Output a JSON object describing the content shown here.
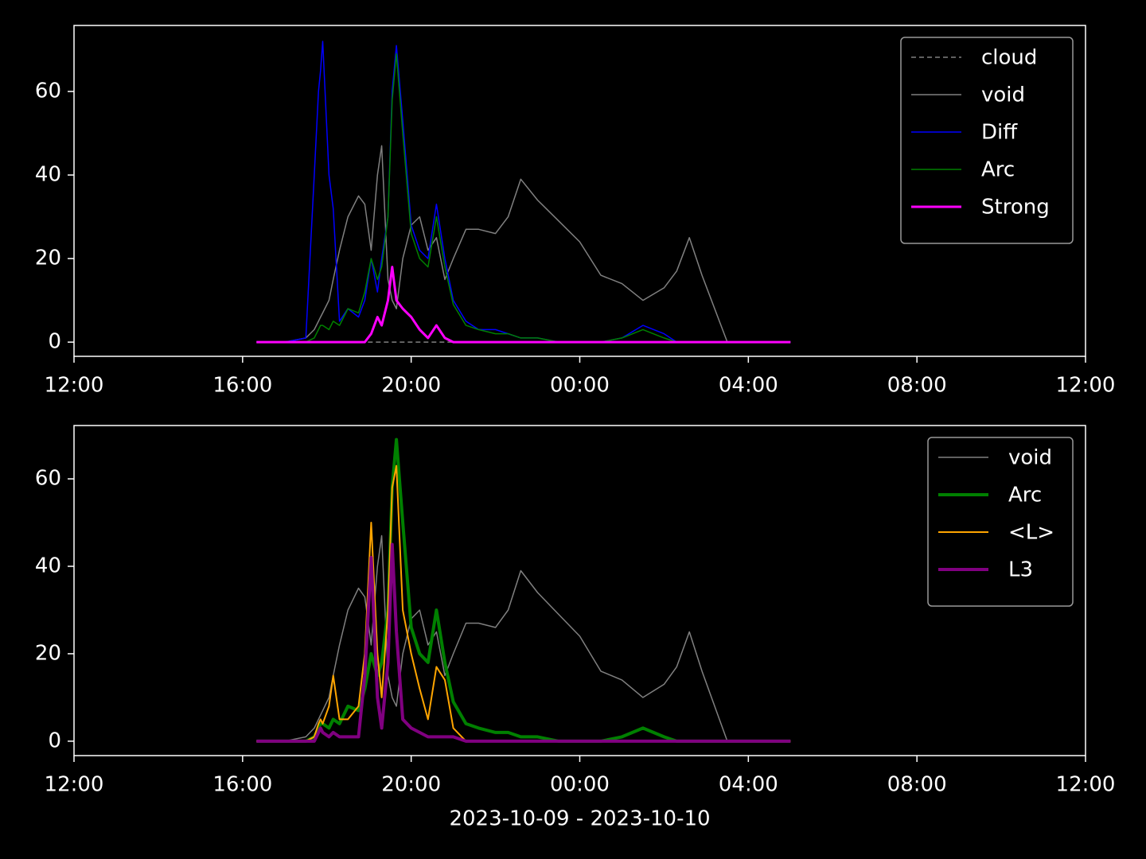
{
  "chart_data": [
    {
      "type": "line",
      "x": [
        16.33,
        17.0,
        17.5,
        17.7,
        17.8,
        17.85,
        17.9,
        18.05,
        18.15,
        18.3,
        18.5,
        18.75,
        18.9,
        19.05,
        19.2,
        19.3,
        19.45,
        19.55,
        19.65,
        19.8,
        20.0,
        20.2,
        20.4,
        20.6,
        20.8,
        21.0,
        21.3,
        21.6,
        22.0,
        22.3,
        22.6,
        23.0,
        23.5,
        24.0,
        24.5,
        25.0,
        25.5,
        26.0,
        26.3,
        26.6,
        26.9,
        27.2,
        27.5,
        28.0,
        29.0
      ],
      "series": [
        {
          "name": "cloud",
          "color": "#808080",
          "dashed": true,
          "linewidth": 1.5,
          "values": [
            0,
            0,
            0,
            0,
            0,
            0,
            0,
            0,
            0,
            0,
            0,
            0,
            0,
            0,
            0,
            0,
            0,
            0,
            0,
            0,
            0,
            0,
            0,
            0,
            0,
            0,
            0,
            0,
            0,
            0,
            0,
            0,
            0,
            0,
            0,
            0,
            0,
            0,
            0,
            0,
            0,
            0,
            0,
            0,
            0
          ]
        },
        {
          "name": "void",
          "color": "#808080",
          "linewidth": 1.5,
          "values": [
            0,
            0,
            1,
            3,
            5,
            6,
            7,
            10,
            15,
            22,
            30,
            35,
            33,
            22,
            40,
            47,
            15,
            10,
            8,
            20,
            28,
            30,
            22,
            25,
            15,
            20,
            27,
            27,
            26,
            30,
            39,
            34,
            29,
            24,
            16,
            14,
            10,
            13,
            17,
            25,
            16,
            8,
            0,
            0,
            0
          ]
        },
        {
          "name": "Diff",
          "color": "#0000ff",
          "linewidth": 1.5,
          "values": [
            0,
            0,
            1,
            40,
            60,
            65,
            72,
            40,
            32,
            5,
            8,
            6,
            10,
            20,
            12,
            20,
            30,
            60,
            71,
            53,
            28,
            22,
            20,
            33,
            20,
            10,
            5,
            3,
            3,
            2,
            1,
            1,
            0,
            0,
            0,
            1,
            4,
            2,
            0,
            0,
            0,
            0,
            0,
            0,
            0
          ]
        },
        {
          "name": "Arc",
          "color": "#008000",
          "linewidth": 1.5,
          "values": [
            0,
            0,
            0,
            1,
            3,
            4,
            4,
            3,
            5,
            4,
            8,
            7,
            12,
            20,
            15,
            18,
            30,
            58,
            69,
            50,
            26,
            20,
            18,
            30,
            18,
            9,
            4,
            3,
            2,
            2,
            1,
            1,
            0,
            0,
            0,
            1,
            3,
            1,
            0,
            0,
            0,
            0,
            0,
            0,
            0
          ]
        },
        {
          "name": "Strong",
          "color": "#ff00ff",
          "linewidth": 3,
          "values": [
            0,
            0,
            0,
            0,
            0,
            0,
            0,
            0,
            0,
            0,
            0,
            0,
            0,
            2,
            6,
            4,
            10,
            18,
            10,
            8,
            6,
            3,
            1,
            4,
            1,
            0,
            0,
            0,
            0,
            0,
            0,
            0,
            0,
            0,
            0,
            0,
            0,
            0,
            0,
            0,
            0,
            0,
            0,
            0,
            0
          ]
        }
      ],
      "xlim": [
        12,
        36
      ],
      "xticks": [
        {
          "value": 12,
          "label": "12:00"
        },
        {
          "value": 16,
          "label": "16:00"
        },
        {
          "value": 20,
          "label": "20:00"
        },
        {
          "value": 24,
          "label": "00:00"
        },
        {
          "value": 28,
          "label": "04:00"
        },
        {
          "value": 32,
          "label": "08:00"
        },
        {
          "value": 36,
          "label": "12:00"
        }
      ],
      "ylim": [
        -3.4,
        75.8
      ],
      "yticks": [
        0,
        20,
        40,
        60
      ],
      "legend": "upper right"
    },
    {
      "type": "line",
      "x": [
        16.33,
        17.0,
        17.5,
        17.7,
        17.8,
        17.85,
        17.9,
        18.05,
        18.15,
        18.3,
        18.5,
        18.75,
        18.9,
        19.05,
        19.2,
        19.3,
        19.45,
        19.55,
        19.65,
        19.8,
        20.0,
        20.2,
        20.4,
        20.6,
        20.8,
        21.0,
        21.3,
        21.6,
        22.0,
        22.3,
        22.6,
        23.0,
        23.5,
        24.0,
        24.5,
        25.0,
        25.5,
        26.0,
        26.3,
        26.6,
        26.9,
        27.2,
        27.5,
        28.0,
        29.0
      ],
      "series": [
        {
          "name": "void",
          "color": "#808080",
          "linewidth": 1.5,
          "values": [
            0,
            0,
            1,
            3,
            5,
            6,
            7,
            10,
            15,
            22,
            30,
            35,
            33,
            22,
            40,
            47,
            15,
            10,
            8,
            20,
            28,
            30,
            22,
            25,
            15,
            20,
            27,
            27,
            26,
            30,
            39,
            34,
            29,
            24,
            16,
            14,
            10,
            13,
            17,
            25,
            16,
            8,
            0,
            0,
            0
          ]
        },
        {
          "name": "Arc",
          "color": "#008000",
          "linewidth": 4,
          "values": [
            0,
            0,
            0,
            1,
            3,
            4,
            4,
            3,
            5,
            4,
            8,
            7,
            12,
            20,
            15,
            18,
            30,
            58,
            69,
            50,
            26,
            20,
            18,
            30,
            18,
            9,
            4,
            3,
            2,
            2,
            1,
            1,
            0,
            0,
            0,
            1,
            3,
            1,
            0,
            0,
            0,
            0,
            0,
            0,
            0
          ]
        },
        {
          "name": "<L>",
          "color": "#ffa500",
          "linewidth": 2,
          "values": [
            0,
            0,
            0,
            1,
            4,
            5,
            4,
            8,
            15,
            5,
            5,
            8,
            20,
            50,
            20,
            10,
            30,
            58,
            63,
            30,
            20,
            12,
            5,
            17,
            14,
            3,
            0,
            0,
            0,
            0,
            0,
            0,
            0,
            0,
            0,
            0,
            0,
            0,
            0,
            0,
            0,
            0,
            0,
            0,
            0
          ]
        },
        {
          "name": "L3",
          "color": "#800080",
          "linewidth": 4,
          "values": [
            0,
            0,
            0,
            0,
            2,
            3,
            2,
            1,
            2,
            1,
            1,
            1,
            15,
            42,
            10,
            3,
            18,
            45,
            25,
            5,
            3,
            2,
            1,
            1,
            1,
            1,
            0,
            0,
            0,
            0,
            0,
            0,
            0,
            0,
            0,
            0,
            0,
            0,
            0,
            0,
            0,
            0,
            0,
            0,
            0
          ]
        }
      ],
      "xlim": [
        12,
        36
      ],
      "xticks": [
        {
          "value": 12,
          "label": "12:00"
        },
        {
          "value": 16,
          "label": "16:00"
        },
        {
          "value": 20,
          "label": "20:00"
        },
        {
          "value": 24,
          "label": "00:00"
        },
        {
          "value": 28,
          "label": "04:00"
        },
        {
          "value": 32,
          "label": "08:00"
        },
        {
          "value": 36,
          "label": "12:00"
        }
      ],
      "ylim": [
        -3.3,
        72.2
      ],
      "yticks": [
        0,
        20,
        40,
        60
      ],
      "xlabel": "2023-10-09 - 2023-10-10",
      "legend": "upper right"
    }
  ]
}
